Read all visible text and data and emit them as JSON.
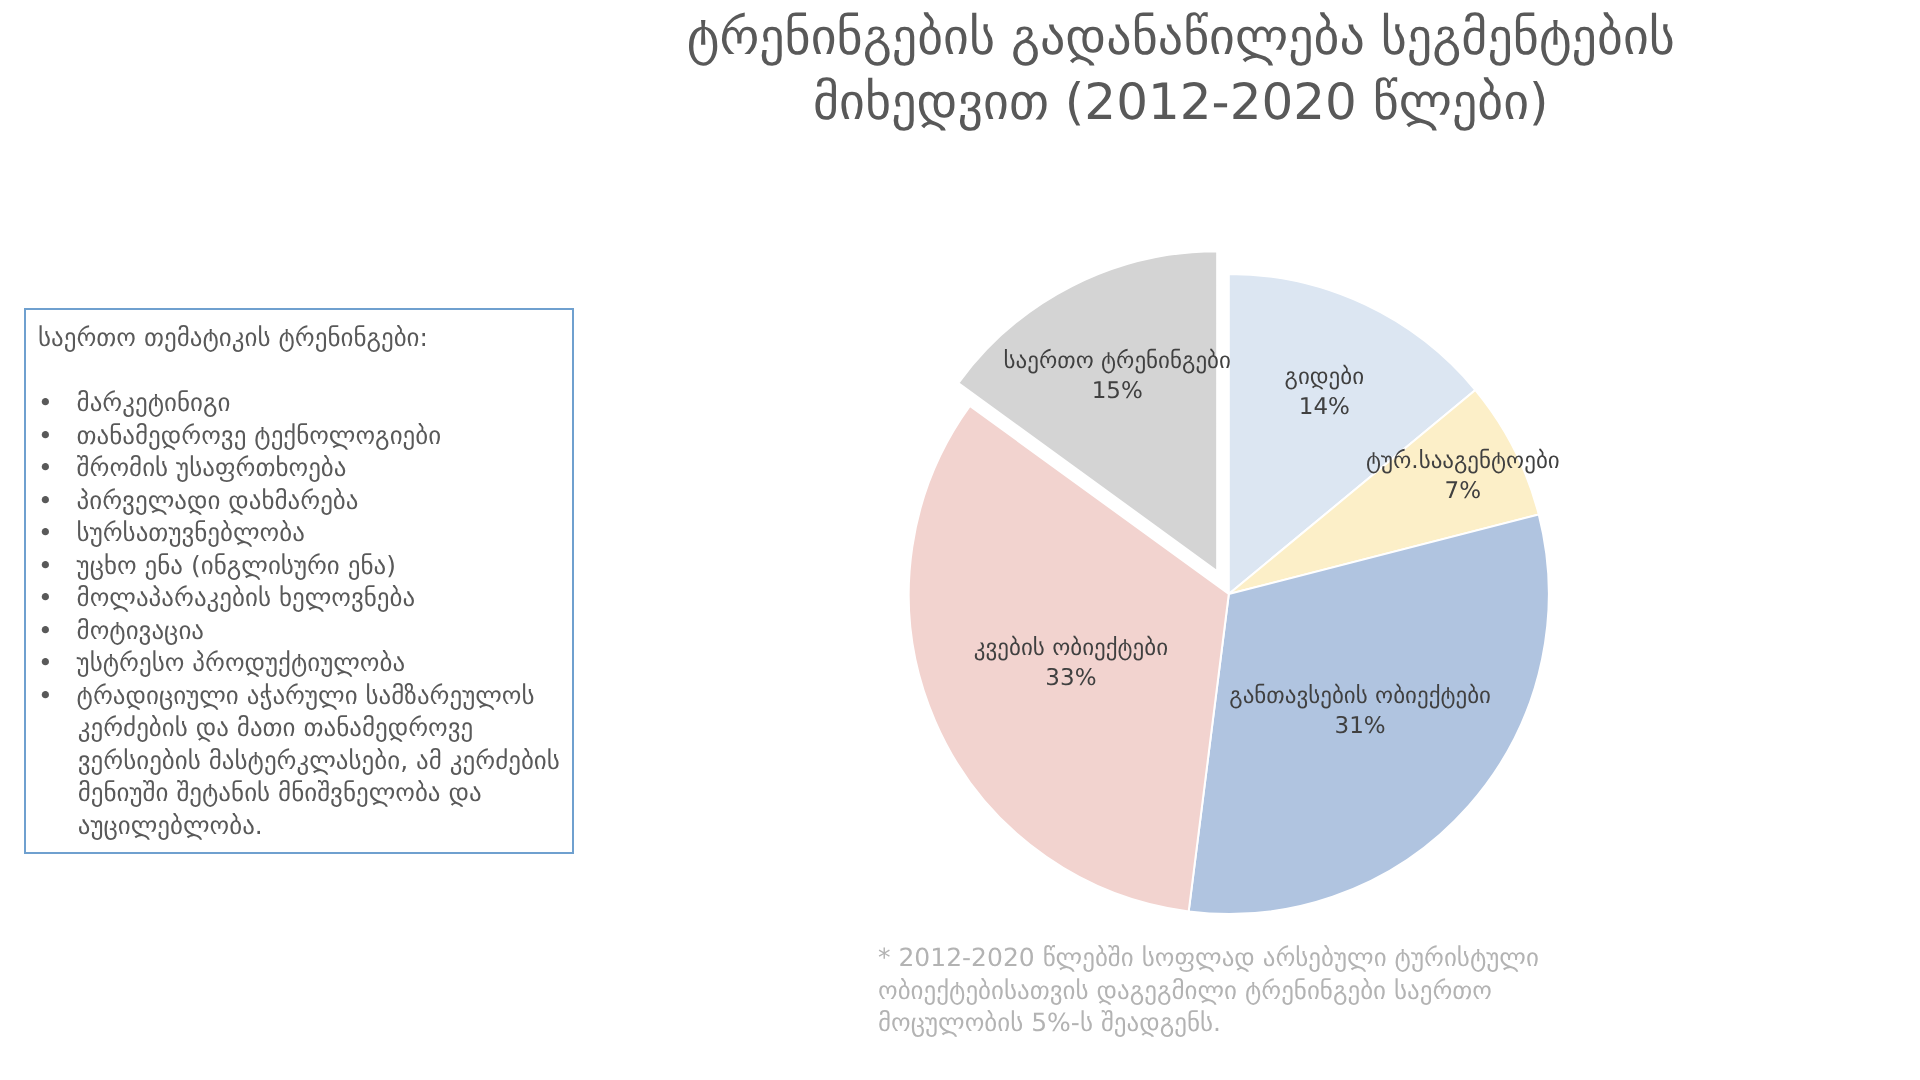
{
  "chart_data": {
    "type": "pie",
    "title": "ტრენინგების გადანაწილება სეგმენტების\nმიხედვით (2012-2020 წლები)",
    "categories": [
      "გიდები",
      "ტურ.სააგენტოები",
      "განთავსების ობიექტები",
      "კვების ობიექტები",
      "საერთო ტრენინგები"
    ],
    "values": [
      14,
      7,
      31,
      33,
      15
    ],
    "value_labels": [
      "14%",
      "7%",
      "31%",
      "33%",
      "15%"
    ],
    "colors": [
      "#dce6f2",
      "#fcefc8",
      "#b0c4e0",
      "#f2d3cf",
      "#d4d4d4"
    ],
    "legend": false,
    "annotations": [
      "საერთო თემატიკის ტრენინგები:\n\n•   მარკეტინიგი\n•   თანამედროვე ტექნოლოგიები\n•   შრომის უსაფრთხოება\n•   პირველადი დახმარება\n•   სურსათუვნებლობა\n•   უცხო ენა (ინგლისური ენა)\n•   მოლაპარაკების ხელოვნება\n•   მოტივაცია\n•   უსტრესო პროდუქტიულობა\n•   ტრადიციული აჭარული სამზარეულოს\n     კერძების და მათი თანამედროვე\n     ვერსიების მასტერკლასები, ამ კერძების\n     მენიუში შეტანის მნიშვნელობა და\n     აუცილებლობა.",
      "* 2012-2020 წლებში სოფლად არსებული ტურისტული\nობიექტებისათვის დაგეგმილი ტრენინგები საერთო\nმოცულობის 5%-ს შეადგენს."
    ]
  }
}
